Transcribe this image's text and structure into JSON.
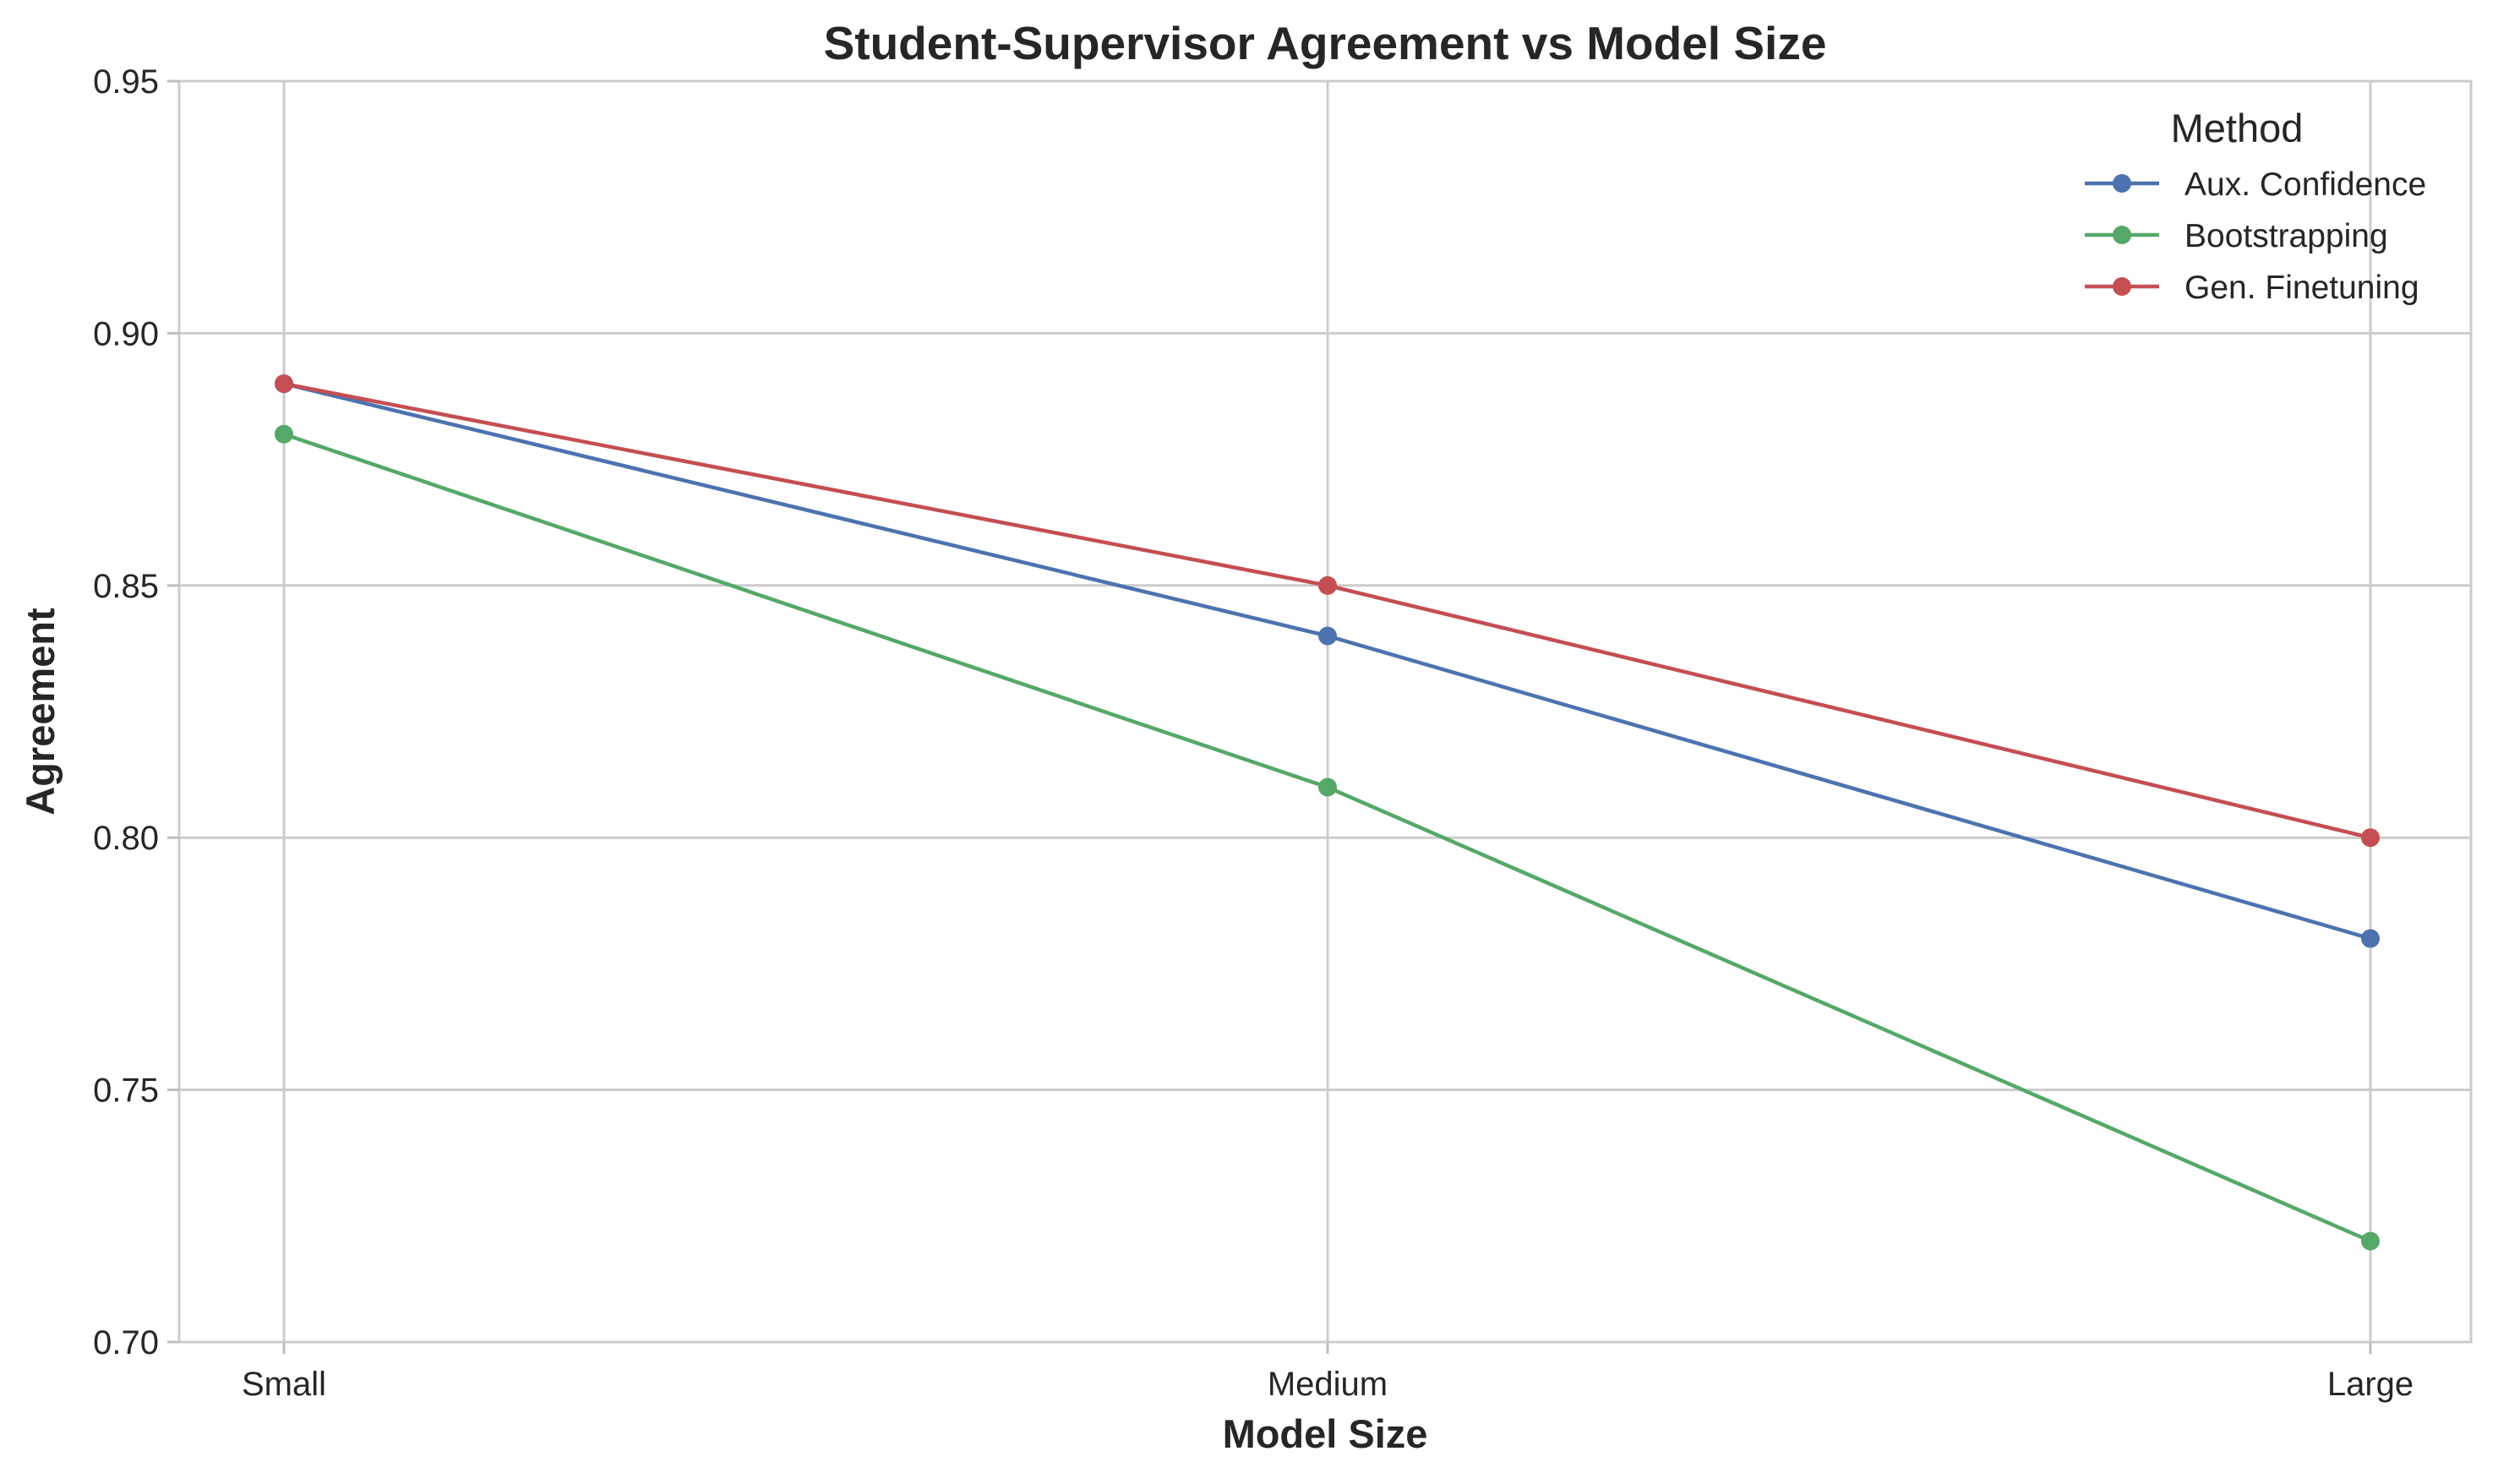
{
  "chart_data": {
    "type": "line",
    "title": "Student-Supervisor Agreement vs Model Size",
    "xlabel": "Model Size",
    "ylabel": "Agreement",
    "categories": [
      "Small",
      "Medium",
      "Large"
    ],
    "ylim": [
      0.7,
      0.95
    ],
    "yticks": [
      "0.70",
      "0.75",
      "0.80",
      "0.85",
      "0.90",
      "0.95"
    ],
    "grid": true,
    "legend": {
      "title": "Method",
      "placement": "top-right"
    },
    "series": [
      {
        "name": "Aux. Confidence",
        "color": "#4c72b0",
        "values": [
          0.89,
          0.84,
          0.78
        ]
      },
      {
        "name": "Bootstrapping",
        "color": "#55a868",
        "values": [
          0.88,
          0.81,
          0.72
        ]
      },
      {
        "name": "Gen. Finetuning",
        "color": "#c44e52",
        "values": [
          0.89,
          0.85,
          0.8
        ]
      }
    ]
  }
}
